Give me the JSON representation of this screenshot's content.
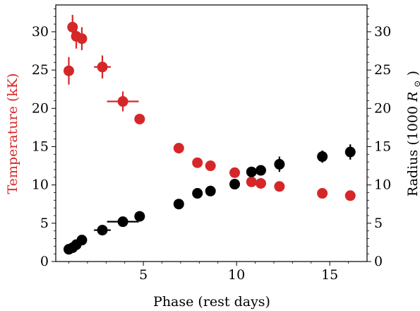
{
  "chart_data": {
    "type": "scatter",
    "xlabel": "Phase (rest days)",
    "ylabel_left": "Temperature (kK)",
    "ylabel_right_prefix": "Radius (1000 ",
    "ylabel_right_symbol": "R",
    "ylabel_right_sub": "⊙",
    "ylabel_right_suffix": ")",
    "xlim": [
      0.3,
      17.0
    ],
    "ylim_left": [
      0,
      33.5
    ],
    "ylim_right": [
      0,
      33.5
    ],
    "xticks": [
      0,
      5,
      10,
      15
    ],
    "yticks_left": [
      0,
      5,
      10,
      15,
      20,
      25,
      30
    ],
    "yticks_right": [
      0,
      5,
      10,
      15,
      20,
      25,
      30
    ],
    "grid": false,
    "colors": {
      "temperature": "#d62728",
      "radius": "#000000",
      "axis": "#000000"
    },
    "series": [
      {
        "axis": "left",
        "color": "#d62728",
        "points": [
          {
            "x": 1.0,
            "y": 24.9,
            "yerr": 1.8,
            "xerr": 0.15
          },
          {
            "x": 1.2,
            "y": 30.6,
            "yerr": 1.6,
            "xerr": 0.15
          },
          {
            "x": 1.4,
            "y": 29.4,
            "yerr": 1.6,
            "xerr": 0.15
          },
          {
            "x": 1.7,
            "y": 29.1,
            "yerr": 1.5,
            "xerr": 0.15
          },
          {
            "x": 2.8,
            "y": 25.4,
            "yerr": 1.5,
            "xerr": 0.45
          },
          {
            "x": 3.9,
            "y": 20.9,
            "yerr": 1.3,
            "xerr": 0.85
          },
          {
            "x": 4.8,
            "y": 18.6,
            "yerr": 0.4,
            "xerr": 0.1
          },
          {
            "x": 6.9,
            "y": 14.8,
            "yerr": 0.3,
            "xerr": 0.1
          },
          {
            "x": 7.9,
            "y": 12.9,
            "yerr": 0.3,
            "xerr": 0.1
          },
          {
            "x": 8.6,
            "y": 12.5,
            "yerr": 0.3,
            "xerr": 0.1
          },
          {
            "x": 9.9,
            "y": 11.6,
            "yerr": 0.3,
            "xerr": 0.1
          },
          {
            "x": 10.8,
            "y": 10.4,
            "yerr": 0.3,
            "xerr": 0.1
          },
          {
            "x": 11.3,
            "y": 10.2,
            "yerr": 0.3,
            "xerr": 0.1
          },
          {
            "x": 12.3,
            "y": 9.8,
            "yerr": 0.3,
            "xerr": 0.1
          },
          {
            "x": 14.6,
            "y": 8.9,
            "yerr": 0.3,
            "xerr": 0.1
          },
          {
            "x": 16.1,
            "y": 8.6,
            "yerr": 0.3,
            "xerr": 0.1
          }
        ]
      },
      {
        "axis": "right",
        "color": "#000000",
        "points": [
          {
            "x": 1.0,
            "y": 1.6,
            "yerr": 0.3,
            "xerr": 0.15
          },
          {
            "x": 1.2,
            "y": 1.8,
            "yerr": 0.3,
            "xerr": 0.15
          },
          {
            "x": 1.4,
            "y": 2.2,
            "yerr": 0.3,
            "xerr": 0.15
          },
          {
            "x": 1.7,
            "y": 2.8,
            "yerr": 0.3,
            "xerr": 0.15
          },
          {
            "x": 2.8,
            "y": 4.1,
            "yerr": 0.3,
            "xerr": 0.45
          },
          {
            "x": 3.9,
            "y": 5.2,
            "yerr": 0.3,
            "xerr": 0.85
          },
          {
            "x": 4.8,
            "y": 5.9,
            "yerr": 0.3,
            "xerr": 0.1
          },
          {
            "x": 6.9,
            "y": 7.5,
            "yerr": 0.3,
            "xerr": 0.1
          },
          {
            "x": 7.9,
            "y": 8.9,
            "yerr": 0.3,
            "xerr": 0.1
          },
          {
            "x": 8.6,
            "y": 9.2,
            "yerr": 0.3,
            "xerr": 0.1
          },
          {
            "x": 9.9,
            "y": 10.1,
            "yerr": 0.3,
            "xerr": 0.1
          },
          {
            "x": 10.8,
            "y": 11.7,
            "yerr": 0.5,
            "xerr": 0.1
          },
          {
            "x": 11.3,
            "y": 11.9,
            "yerr": 0.5,
            "xerr": 0.1
          },
          {
            "x": 12.3,
            "y": 12.7,
            "yerr": 1.0,
            "xerr": 0.1
          },
          {
            "x": 14.6,
            "y": 13.7,
            "yerr": 0.8,
            "xerr": 0.1
          },
          {
            "x": 16.1,
            "y": 14.3,
            "yerr": 1.0,
            "xerr": 0.1
          }
        ]
      }
    ]
  }
}
